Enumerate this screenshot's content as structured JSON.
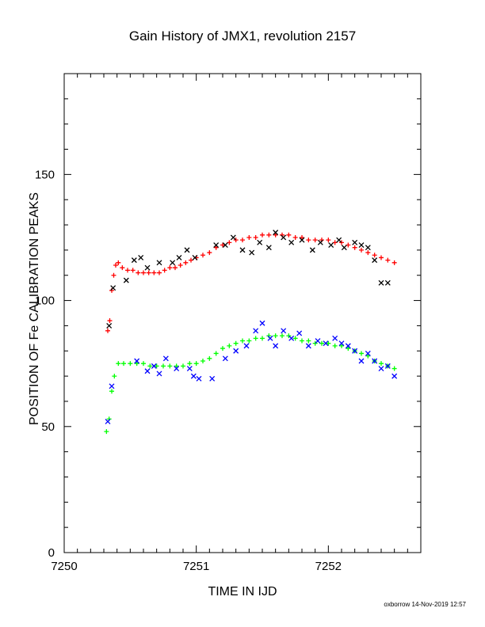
{
  "chart_data": {
    "type": "scatter",
    "title": "Gain History of JMX1, revolution 2157",
    "xlabel": "TIME IN IJD",
    "ylabel": "POSITION OF Fe CALIBRATION PEAKS",
    "xlim": [
      7250,
      7252.7
    ],
    "ylim": [
      0,
      190
    ],
    "x_ticks": [
      "7250",
      "7251",
      "7252"
    ],
    "y_ticks": [
      "0",
      "50",
      "100",
      "150"
    ],
    "grid": false,
    "series": [
      {
        "marker": "plus",
        "color": "#ff0000",
        "x": [
          7250.33,
          7250.345,
          7250.36,
          7250.375,
          7250.39,
          7250.41,
          7250.44,
          7250.48,
          7250.52,
          7250.56,
          7250.6,
          7250.64,
          7250.68,
          7250.72,
          7250.76,
          7250.8,
          7250.84,
          7250.88,
          7250.92,
          7250.96,
          7251.0,
          7251.05,
          7251.1,
          7251.15,
          7251.2,
          7251.25,
          7251.3,
          7251.35,
          7251.4,
          7251.45,
          7251.5,
          7251.55,
          7251.6,
          7251.65,
          7251.7,
          7251.75,
          7251.8,
          7251.85,
          7251.9,
          7251.95,
          7252.0,
          7252.05,
          7252.1,
          7252.15,
          7252.2,
          7252.25,
          7252.3,
          7252.35,
          7252.4,
          7252.45,
          7252.5
        ],
        "y": [
          88,
          92,
          104,
          110,
          114,
          115,
          113,
          112,
          112,
          111,
          111,
          111,
          111,
          111,
          112,
          113,
          113,
          114,
          115,
          116,
          117,
          118,
          119,
          121,
          122,
          123,
          124,
          124,
          125,
          125,
          126,
          126,
          126,
          126,
          126,
          125,
          125,
          124,
          124,
          124,
          124,
          123,
          123,
          122,
          121,
          120,
          119,
          118,
          117,
          116,
          115
        ]
      },
      {
        "marker": "cross",
        "color": "#000000",
        "x": [
          7250.34,
          7250.37,
          7250.47,
          7250.53,
          7250.58,
          7250.63,
          7250.72,
          7250.82,
          7250.87,
          7250.93,
          7250.99,
          7251.15,
          7251.22,
          7251.28,
          7251.35,
          7251.42,
          7251.48,
          7251.55,
          7251.6,
          7251.66,
          7251.72,
          7251.8,
          7251.88,
          7251.94,
          7252.02,
          7252.08,
          7252.12,
          7252.2,
          7252.25,
          7252.3,
          7252.35,
          7252.4,
          7252.45
        ],
        "y": [
          90,
          105,
          108,
          116,
          117,
          113,
          115,
          115,
          117,
          120,
          117,
          122,
          122,
          125,
          120,
          119,
          123,
          121,
          127,
          125,
          123,
          124,
          120,
          123,
          122,
          124,
          121,
          123,
          122,
          121,
          116,
          107,
          107
        ]
      },
      {
        "marker": "plus",
        "color": "#00ff00",
        "x": [
          7250.32,
          7250.34,
          7250.36,
          7250.38,
          7250.41,
          7250.45,
          7250.5,
          7250.55,
          7250.6,
          7250.65,
          7250.7,
          7250.75,
          7250.8,
          7250.85,
          7250.9,
          7250.95,
          7251.0,
          7251.05,
          7251.1,
          7251.15,
          7251.2,
          7251.25,
          7251.3,
          7251.35,
          7251.4,
          7251.45,
          7251.5,
          7251.55,
          7251.6,
          7251.65,
          7251.7,
          7251.75,
          7251.8,
          7251.85,
          7251.9,
          7251.95,
          7252.0,
          7252.05,
          7252.1,
          7252.15,
          7252.2,
          7252.25,
          7252.3,
          7252.35,
          7252.4,
          7252.45,
          7252.5
        ],
        "y": [
          48,
          53,
          64,
          70,
          75,
          75,
          75,
          75,
          75,
          74,
          74,
          74,
          74,
          74,
          74,
          75,
          75,
          76,
          77,
          79,
          81,
          82,
          83,
          84,
          84,
          85,
          85,
          86,
          86,
          86,
          86,
          85,
          84,
          84,
          83,
          83,
          83,
          82,
          82,
          81,
          80,
          79,
          78,
          76,
          75,
          74,
          73
        ]
      },
      {
        "marker": "cross",
        "color": "#0000ff",
        "x": [
          7250.33,
          7250.36,
          7250.55,
          7250.63,
          7250.68,
          7250.72,
          7250.77,
          7250.85,
          7250.95,
          7250.98,
          7251.02,
          7251.12,
          7251.22,
          7251.3,
          7251.38,
          7251.45,
          7251.5,
          7251.56,
          7251.6,
          7251.66,
          7251.72,
          7251.78,
          7251.85,
          7251.92,
          7251.98,
          7252.05,
          7252.1,
          7252.15,
          7252.2,
          7252.25,
          7252.3,
          7252.35,
          7252.4,
          7252.45,
          7252.5
        ],
        "y": [
          52,
          66,
          76,
          72,
          74,
          71,
          77,
          73,
          73,
          70,
          69,
          69,
          77,
          80,
          82,
          88,
          91,
          85,
          82,
          88,
          85,
          87,
          82,
          84,
          83,
          85,
          83,
          82,
          80,
          76,
          79,
          76,
          73,
          74,
          70
        ]
      }
    ]
  },
  "footer": {
    "note": "oxborrow 14-Nov-2019 12:57"
  }
}
